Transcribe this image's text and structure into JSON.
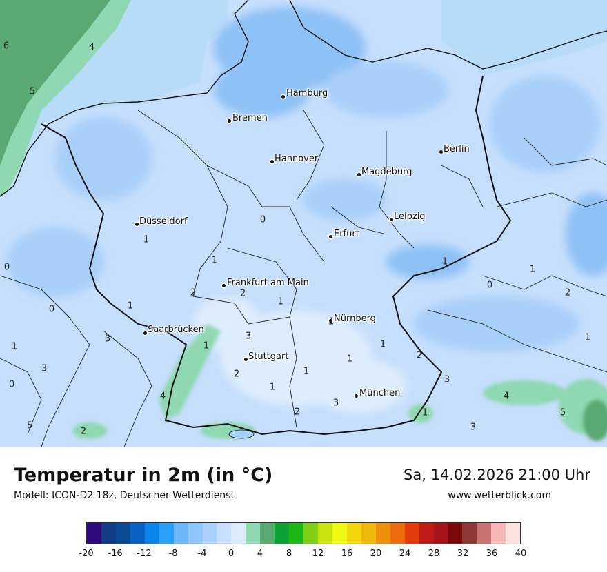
{
  "map": {
    "cities": [
      {
        "name": "Hamburg"
      },
      {
        "name": "Bremen"
      },
      {
        "name": "Berlin"
      },
      {
        "name": "Hannover"
      },
      {
        "name": "Magdeburg"
      },
      {
        "name": "Düsseldorf"
      },
      {
        "name": "Leipzig"
      },
      {
        "name": "Erfurt"
      },
      {
        "name": "Frankfurt am Main"
      },
      {
        "name": "Nürnberg"
      },
      {
        "name": "Saarbrücken"
      },
      {
        "name": "Stuttgart"
      },
      {
        "name": "München"
      }
    ],
    "temperature_values": [
      "6",
      "4",
      "5",
      "1",
      "0",
      "1",
      "0",
      "1",
      "2",
      "2",
      "1",
      "0",
      "1",
      "1",
      "0",
      "2",
      "1",
      "1",
      "3",
      "3",
      "1",
      "1",
      "1",
      "1",
      "2",
      "1",
      "2",
      "3",
      "3",
      "0",
      "1",
      "4",
      "3",
      "4",
      "2",
      "1",
      "5",
      "5",
      "2",
      "3"
    ],
    "colors": {
      "sea_deep": "#5aa872",
      "sea_mid": "#8fd8b1",
      "sea_light": "#b8dcf7",
      "land_base": "#c5defb",
      "cold_patch": "#8ec1f5",
      "mid_patch": "#a8cff9",
      "warm_patch": "#dcecfd",
      "green_patch": "#8fd8b1",
      "border_line": "#111111"
    }
  },
  "footer": {
    "title": "Temperatur in 2m (in °C)",
    "model": "Modell: ICON-D2 18z, Deutscher Wetterdienst",
    "datetime": "Sa, 14.02.2026 21:00 Uhr",
    "website": "www.wetterblick.com"
  },
  "legend": {
    "colors": [
      "#2d0a7a",
      "#113e87",
      "#0a4d96",
      "#0a63c2",
      "#0b84ec",
      "#2ca0f8",
      "#6cb9f9",
      "#8ec6f9",
      "#a8d2fb",
      "#c5defb",
      "#dbeafc",
      "#8fd8b1",
      "#5aa872",
      "#0fa237",
      "#1fb817",
      "#7fce13",
      "#c8e50c",
      "#eff810",
      "#f0d60a",
      "#f0b80a",
      "#ef8d0c",
      "#ed6b0c",
      "#e43a0c",
      "#bd1a18",
      "#a8141a",
      "#7d0a0a",
      "#8f3838",
      "#c97373",
      "#f4b6b6",
      "#fde0e0"
    ],
    "ticks": [
      "-20",
      "-16",
      "-12",
      "-8",
      "-4",
      "0",
      "4",
      "8",
      "12",
      "16",
      "20",
      "24",
      "28",
      "32",
      "36",
      "40"
    ]
  }
}
